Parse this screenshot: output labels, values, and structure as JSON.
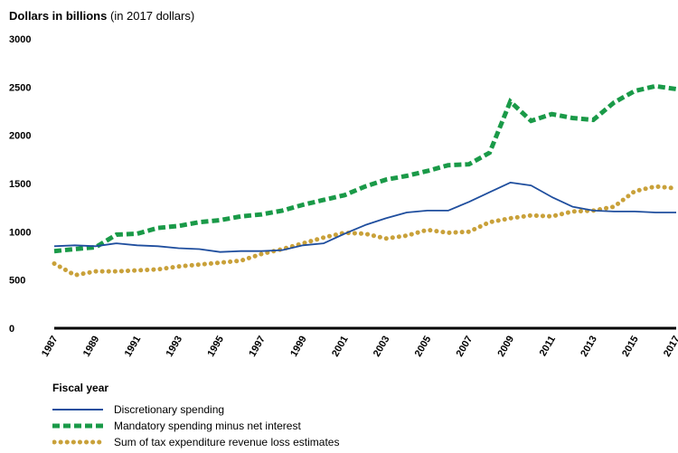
{
  "chart_data": {
    "type": "line",
    "ylabel_bold": "Dollars in billions",
    "ylabel_note": "(in 2017 dollars)",
    "xlabel": "Fiscal year",
    "ylim": [
      0,
      3000
    ],
    "yticks": [
      0,
      500,
      1000,
      1500,
      2000,
      2500,
      3000
    ],
    "xlim": [
      1987,
      2017
    ],
    "xticks": [
      1987,
      1989,
      1991,
      1993,
      1995,
      1997,
      1999,
      2001,
      2003,
      2005,
      2007,
      2009,
      2011,
      2013,
      2015,
      2017
    ],
    "grid": false,
    "legend_position": "bottom",
    "x": [
      1987,
      1988,
      1989,
      1990,
      1991,
      1992,
      1993,
      1994,
      1995,
      1996,
      1997,
      1998,
      1999,
      2000,
      2001,
      2002,
      2003,
      2004,
      2005,
      2006,
      2007,
      2008,
      2009,
      2010,
      2011,
      2012,
      2013,
      2014,
      2015,
      2016,
      2017
    ],
    "series": [
      {
        "name": "Discretionary spending",
        "color": "#1f4e9e",
        "style": "solid",
        "values": [
          850,
          860,
          850,
          880,
          860,
          850,
          830,
          820,
          790,
          800,
          800,
          810,
          860,
          880,
          980,
          1070,
          1140,
          1200,
          1220,
          1220,
          1310,
          1410,
          1510,
          1480,
          1360,
          1260,
          1220,
          1210,
          1210,
          1200,
          1200
        ]
      },
      {
        "name": "Mandatory spending minus net interest",
        "color": "#1a9a48",
        "style": "dashed",
        "values": [
          800,
          820,
          840,
          970,
          980,
          1040,
          1060,
          1100,
          1120,
          1160,
          1180,
          1220,
          1280,
          1330,
          1380,
          1470,
          1540,
          1580,
          1630,
          1690,
          1700,
          1820,
          2350,
          2150,
          2220,
          2180,
          2160,
          2340,
          2460,
          2510,
          2480
        ]
      },
      {
        "name": "Sum of tax expenditure revenue loss estimates",
        "color": "#c9a13a",
        "style": "dotted",
        "values": [
          670,
          550,
          590,
          590,
          600,
          610,
          640,
          660,
          680,
          700,
          770,
          820,
          880,
          940,
          990,
          980,
          930,
          960,
          1020,
          990,
          1000,
          1100,
          1140,
          1170,
          1160,
          1210,
          1220,
          1260,
          1420,
          1470,
          1450
        ]
      }
    ]
  }
}
